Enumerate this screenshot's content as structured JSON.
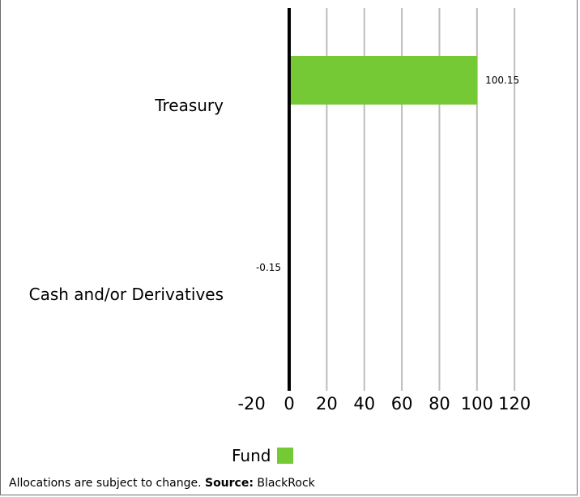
{
  "chart_data": {
    "type": "bar",
    "orientation": "horizontal",
    "categories": [
      "Treasury",
      "Cash and/or Derivatives"
    ],
    "series": [
      {
        "name": "Fund",
        "values": [
          100.15,
          -0.15
        ],
        "color": "#74c935"
      }
    ],
    "data_labels": [
      "100.15",
      "-0.15"
    ],
    "xlim": [
      -20,
      120
    ],
    "x_ticks": [
      -20,
      0,
      20,
      40,
      60,
      80,
      100,
      120
    ],
    "x_tick_labels": [
      "-20",
      "0",
      "20",
      "40",
      "60",
      "80",
      "100",
      "120"
    ],
    "grid": "vertical",
    "legend_position": "bottom"
  },
  "legend": {
    "label": "Fund",
    "color": "#74c935"
  },
  "footnote": {
    "text": "Allocations are subject to change.",
    "source_label": "Source:",
    "source_value": "BlackRock"
  }
}
